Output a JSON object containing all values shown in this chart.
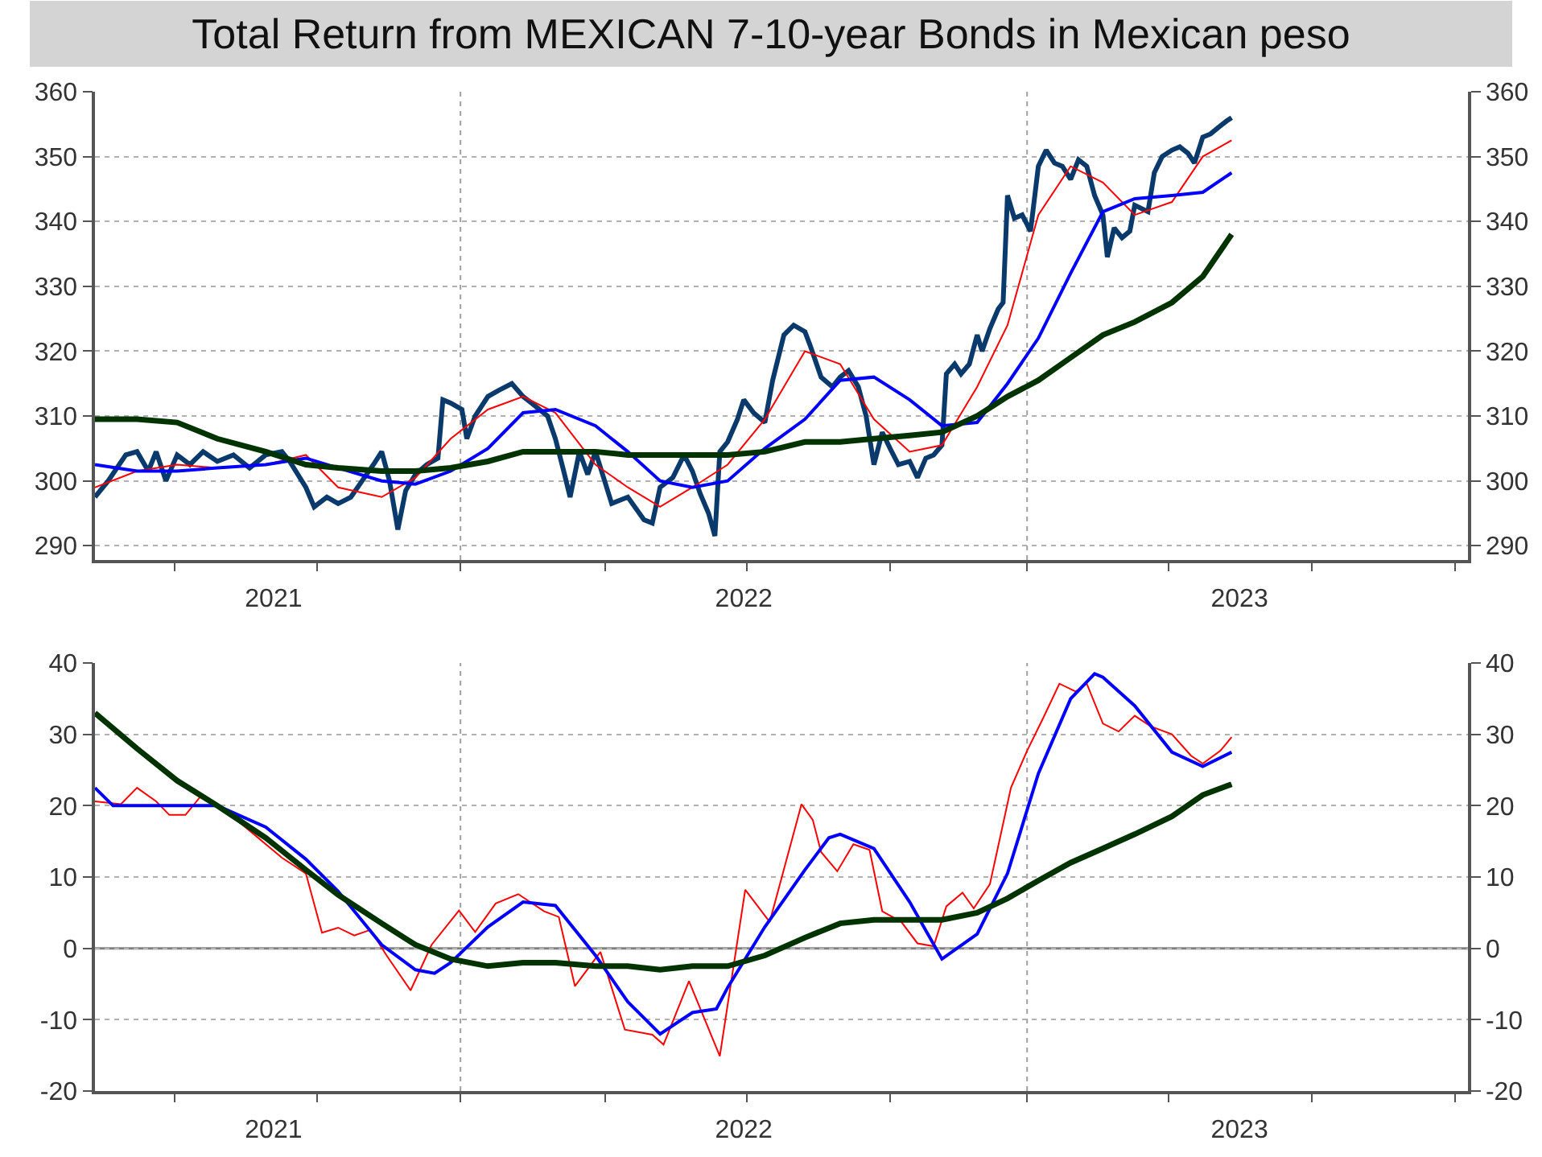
{
  "chart_data": [
    {
      "type": "line",
      "title": "Total Return from MEXICAN 7-10-year Bonds in Mexican peso",
      "xlim": [
        2020.674,
        2023.48
      ],
      "xticks": [
        {
          "value": 2020.836,
          "label": null
        },
        {
          "value": 2021.039,
          "label": "2021"
        },
        {
          "value": 2021.128,
          "label": null
        },
        {
          "value": 2021.421,
          "label": null
        },
        {
          "value": 2021.717,
          "label": null
        },
        {
          "value": 2022.0,
          "label": "2022"
        },
        {
          "value": 2022.007,
          "label": null
        },
        {
          "value": 2022.299,
          "label": null
        },
        {
          "value": 2022.579,
          "label": null
        },
        {
          "value": 2022.868,
          "label": null
        },
        {
          "value": 2023.013,
          "label": "2023"
        },
        {
          "value": 2023.161,
          "label": null
        },
        {
          "value": 2023.454,
          "label": null
        }
      ],
      "ylim": [
        287.8,
        360
      ],
      "yticks": [
        290,
        300,
        310,
        320,
        330,
        340,
        350,
        360
      ],
      "y2lim": [
        287.8,
        360
      ],
      "y2ticks": [
        290,
        300,
        310,
        320,
        330,
        340,
        350,
        360
      ],
      "grid": "y",
      "ref_lines": [
        {
          "axis": "x",
          "value": 2021.421,
          "color": "#a0a0a0",
          "line_style": "dotted"
        },
        {
          "axis": "x",
          "value": 2022.579,
          "color": "#a0a0a0",
          "line_style": "dotted"
        }
      ],
      "series": [
        {
          "color": "#0a3a6b",
          "x": [
            2020.674,
            2020.701,
            2020.737,
            2020.76,
            2020.783,
            2020.799,
            2020.819,
            2020.842,
            2020.868,
            2020.895,
            2020.924,
            2020.957,
            2020.99,
            2021.023,
            2021.056,
            2021.072,
            2021.105,
            2021.122,
            2021.148,
            2021.171,
            2021.197,
            2021.22,
            2021.243,
            2021.26,
            2021.276,
            2021.293,
            2021.309,
            2021.329,
            2021.352,
            2021.375,
            2021.385,
            2021.401,
            2021.424,
            2021.434,
            2021.451,
            2021.477,
            2021.5,
            2021.526,
            2021.549,
            2021.566,
            2021.599,
            2021.615,
            2021.632,
            2021.645,
            2021.664,
            2021.681,
            2021.697,
            2021.73,
            2021.763,
            2021.796,
            2021.813,
            2021.829,
            2021.855,
            2021.878,
            2021.895,
            2021.911,
            2021.928,
            2021.941,
            2021.951,
            2021.967,
            2021.987,
            2022.0,
            2022.02,
            2022.043,
            2022.059,
            2022.082,
            2022.102,
            2022.125,
            2022.135,
            2022.158,
            2022.181,
            2022.197,
            2022.214,
            2022.234,
            2022.25,
            2022.266,
            2022.283,
            2022.299,
            2022.316,
            2022.339,
            2022.355,
            2022.372,
            2022.388,
            2022.405,
            2022.414,
            2022.431,
            2022.444,
            2022.461,
            2022.477,
            2022.487,
            2022.503,
            2022.52,
            2022.53,
            2022.539,
            2022.553,
            2022.569,
            2022.586,
            2022.602,
            2022.618,
            2022.635,
            2022.651,
            2022.668,
            2022.684,
            2022.701,
            2022.717,
            2022.734,
            2022.743,
            2022.757,
            2022.773,
            2022.789,
            2022.799,
            2022.826,
            2022.839,
            2022.855,
            2022.875,
            2022.891,
            2022.908,
            2022.921,
            2022.938,
            2022.954,
            2022.97,
            2022.987,
            2022.997
          ],
          "values": [
            297.5,
            300,
            304,
            304.5,
            301.5,
            304.5,
            300,
            304,
            302.5,
            304.5,
            303,
            304,
            302,
            304,
            304.5,
            303,
            299,
            296,
            297.5,
            296.5,
            297.5,
            300,
            302.5,
            304.5,
            300,
            292.5,
            298.5,
            301,
            302.5,
            303.5,
            312.5,
            312,
            311,
            306.5,
            310,
            313,
            314,
            315,
            313,
            312,
            310,
            306.5,
            301.5,
            297.5,
            304.5,
            301,
            304.5,
            296.5,
            297.5,
            294,
            293.5,
            299,
            300.5,
            304,
            301.5,
            298,
            295,
            291.5,
            304.5,
            306,
            309.5,
            312.5,
            310.5,
            309,
            315.5,
            322.5,
            324,
            323,
            321,
            316,
            314.5,
            316,
            317,
            314.5,
            310,
            302.5,
            307.5,
            305,
            302.5,
            303,
            300.5,
            303.5,
            304,
            305.5,
            316.5,
            318,
            316.5,
            318,
            322.5,
            320,
            323.5,
            326.5,
            327.5,
            344,
            340.5,
            341,
            338.5,
            348.5,
            351,
            349,
            348.5,
            346.5,
            349.5,
            348.5,
            344,
            341,
            334.5,
            339,
            337.5,
            338.5,
            342.5,
            341.5,
            347.5,
            350,
            351,
            351.5,
            350.5,
            349,
            353,
            353.5,
            354.5,
            355.5,
            356
          ]
        },
        {
          "color": "#ff0000",
          "x": [
            2020.674,
            2020.76,
            2020.842,
            2020.924,
            2021.023,
            2021.105,
            2021.171,
            2021.26,
            2021.329,
            2021.401,
            2021.477,
            2021.549,
            2021.615,
            2021.697,
            2021.763,
            2021.829,
            2021.895,
            2021.967,
            2022.043,
            2022.125,
            2022.197,
            2022.266,
            2022.339,
            2022.405,
            2022.477,
            2022.539,
            2022.602,
            2022.668,
            2022.734,
            2022.799,
            2022.875,
            2022.938,
            2022.997
          ],
          "values": [
            299,
            301.5,
            302.5,
            302,
            302.5,
            304,
            299,
            297.5,
            300.5,
            306.5,
            311,
            313,
            310.5,
            302.5,
            299,
            296,
            299,
            302.5,
            309.5,
            320,
            318,
            309.5,
            304.5,
            305.5,
            314.5,
            324,
            341,
            348.5,
            346,
            341,
            343,
            350,
            352.5
          ]
        },
        {
          "color": "#0000ff",
          "x": [
            2020.674,
            2020.76,
            2020.842,
            2020.924,
            2021.023,
            2021.105,
            2021.171,
            2021.26,
            2021.329,
            2021.401,
            2021.477,
            2021.549,
            2021.615,
            2021.697,
            2021.763,
            2021.829,
            2021.895,
            2021.967,
            2022.043,
            2022.125,
            2022.197,
            2022.266,
            2022.339,
            2022.405,
            2022.477,
            2022.539,
            2022.602,
            2022.668,
            2022.734,
            2022.799,
            2022.875,
            2022.938,
            2022.997
          ],
          "values": [
            302.5,
            301.5,
            301.5,
            302,
            302.5,
            303.5,
            302,
            300,
            299.5,
            301.5,
            305,
            310.5,
            311,
            308.5,
            304.5,
            300,
            299,
            300,
            305,
            309.5,
            315.5,
            316,
            312.5,
            308.5,
            309,
            315,
            322,
            332,
            341.5,
            343.5,
            344,
            344.5,
            347.5
          ]
        },
        {
          "color": "#003300",
          "x": [
            2020.674,
            2020.76,
            2020.842,
            2020.924,
            2021.023,
            2021.105,
            2021.171,
            2021.26,
            2021.329,
            2021.401,
            2021.477,
            2021.549,
            2021.615,
            2021.697,
            2021.763,
            2021.829,
            2021.895,
            2021.967,
            2022.043,
            2022.125,
            2022.197,
            2022.266,
            2022.339,
            2022.405,
            2022.477,
            2022.539,
            2022.602,
            2022.668,
            2022.734,
            2022.799,
            2022.875,
            2022.938,
            2022.997
          ],
          "values": [
            309.5,
            309.5,
            309,
            306.5,
            304.5,
            302.5,
            302,
            301.5,
            301.5,
            302,
            303,
            304.5,
            304.5,
            304.5,
            304,
            304,
            304,
            304,
            304.5,
            306,
            306,
            306.5,
            307,
            307.5,
            310,
            313,
            315.5,
            319,
            322.5,
            324.5,
            327.5,
            331.5,
            338
          ]
        }
      ]
    },
    {
      "type": "line",
      "xlim": [
        2020.674,
        2023.48
      ],
      "xticks": [
        {
          "value": 2020.836,
          "label": null
        },
        {
          "value": 2021.039,
          "label": "2021"
        },
        {
          "value": 2021.128,
          "label": null
        },
        {
          "value": 2021.421,
          "label": null
        },
        {
          "value": 2021.717,
          "label": null
        },
        {
          "value": 2022.0,
          "label": "2022"
        },
        {
          "value": 2022.007,
          "label": null
        },
        {
          "value": 2022.299,
          "label": null
        },
        {
          "value": 2022.579,
          "label": null
        },
        {
          "value": 2022.868,
          "label": null
        },
        {
          "value": 2023.013,
          "label": "2023"
        },
        {
          "value": 2023.161,
          "label": null
        },
        {
          "value": 2023.454,
          "label": null
        }
      ],
      "ylim": [
        -20,
        40
      ],
      "yticks": [
        -20,
        -10,
        0,
        10,
        20,
        30,
        40
      ],
      "y2lim": [
        -20,
        40
      ],
      "y2ticks": [
        -20,
        -10,
        0,
        10,
        20,
        30,
        40
      ],
      "grid": "y",
      "ref_lines": [
        {
          "axis": "x",
          "value": 2021.421,
          "color": "#a0a0a0",
          "line_style": "dotted"
        },
        {
          "axis": "x",
          "value": 2022.579,
          "color": "#a0a0a0",
          "line_style": "dotted"
        },
        {
          "axis": "y",
          "value": 0,
          "color": "#808080",
          "line_style": "solid"
        }
      ],
      "series": [
        {
          "color": "#ff0000",
          "x": [
            2020.674,
            2020.727,
            2020.76,
            2020.799,
            2020.826,
            2020.859,
            2020.891,
            2020.924,
            2020.99,
            2021.056,
            2021.105,
            2021.138,
            2021.171,
            2021.204,
            2021.237,
            2021.27,
            2021.319,
            2021.362,
            2021.418,
            2021.451,
            2021.493,
            2021.539,
            2021.592,
            2021.622,
            2021.655,
            2021.707,
            2021.757,
            2021.813,
            2021.836,
            2021.888,
            2021.951,
            2022.003,
            2022.053,
            2022.118,
            2022.141,
            2022.158,
            2022.191,
            2022.224,
            2022.257,
            2022.283,
            2022.322,
            2022.355,
            2022.388,
            2022.414,
            2022.447,
            2022.47,
            2022.503,
            2022.546,
            2022.579,
            2022.612,
            2022.645,
            2022.678,
            2022.701,
            2022.734,
            2022.766,
            2022.799,
            2022.832,
            2022.875,
            2022.914,
            2022.938,
            2022.974,
            2022.997
          ],
          "values": [
            20.6,
            20.2,
            22.5,
            20.6,
            18.7,
            18.7,
            21.4,
            20.2,
            16.5,
            12.7,
            10.5,
            2.2,
            2.9,
            1.8,
            2.6,
            -1,
            -5.9,
            0.5,
            5.3,
            2.3,
            6.3,
            7.6,
            5.2,
            4.4,
            -5.3,
            -0.5,
            -11.4,
            -12.1,
            -13.5,
            -4.6,
            -15.1,
            8.2,
            3.7,
            20.2,
            18,
            13.5,
            10.8,
            14.6,
            13.8,
            5.2,
            3.7,
            0.7,
            0.3,
            5.9,
            7.8,
            5.6,
            9,
            22.5,
            27.7,
            32.3,
            37.1,
            36,
            37.1,
            31.5,
            30.4,
            32.6,
            31.1,
            30,
            27,
            25.9,
            27.7,
            29.6
          ]
        },
        {
          "color": "#0000ff",
          "x": [
            2020.674,
            2020.711,
            2020.76,
            2020.842,
            2020.924,
            2021.023,
            2021.105,
            2021.171,
            2021.26,
            2021.329,
            2021.368,
            2021.401,
            2021.477,
            2021.549,
            2021.615,
            2021.697,
            2021.763,
            2021.829,
            2021.895,
            2021.944,
            2021.967,
            2022.043,
            2022.125,
            2022.174,
            2022.197,
            2022.266,
            2022.339,
            2022.405,
            2022.477,
            2022.539,
            2022.602,
            2022.668,
            2022.717,
            2022.734,
            2022.799,
            2022.875,
            2022.938,
            2022.997
          ],
          "values": [
            22.5,
            20,
            20,
            20,
            20,
            17,
            12.5,
            8,
            0.5,
            -3,
            -3.5,
            -2,
            3,
            6.5,
            6,
            -1,
            -7.5,
            -12,
            -9,
            -8.5,
            -5.5,
            3,
            11,
            15.5,
            16,
            14,
            6.5,
            -1.5,
            2,
            10.5,
            24.5,
            35,
            38.5,
            38,
            34,
            27.5,
            25.5,
            27.5
          ]
        },
        {
          "color": "#003300",
          "x": [
            2020.674,
            2020.76,
            2020.842,
            2020.924,
            2021.023,
            2021.105,
            2021.171,
            2021.26,
            2021.329,
            2021.401,
            2021.477,
            2021.549,
            2021.615,
            2021.697,
            2021.763,
            2021.829,
            2021.895,
            2021.967,
            2022.043,
            2022.125,
            2022.197,
            2022.266,
            2022.339,
            2022.405,
            2022.477,
            2022.539,
            2022.602,
            2022.668,
            2022.734,
            2022.799,
            2022.875,
            2022.938,
            2022.997
          ],
          "values": [
            33,
            28,
            23.5,
            20,
            15.5,
            11,
            7.5,
            3.5,
            0.5,
            -1.5,
            -2.5,
            -2,
            -2,
            -2.5,
            -2.5,
            -3,
            -2.5,
            -2.5,
            -1,
            1.5,
            3.5,
            4,
            4,
            4,
            5,
            7,
            9.5,
            12,
            14,
            16,
            18.5,
            21.5,
            23
          ]
        }
      ]
    }
  ]
}
